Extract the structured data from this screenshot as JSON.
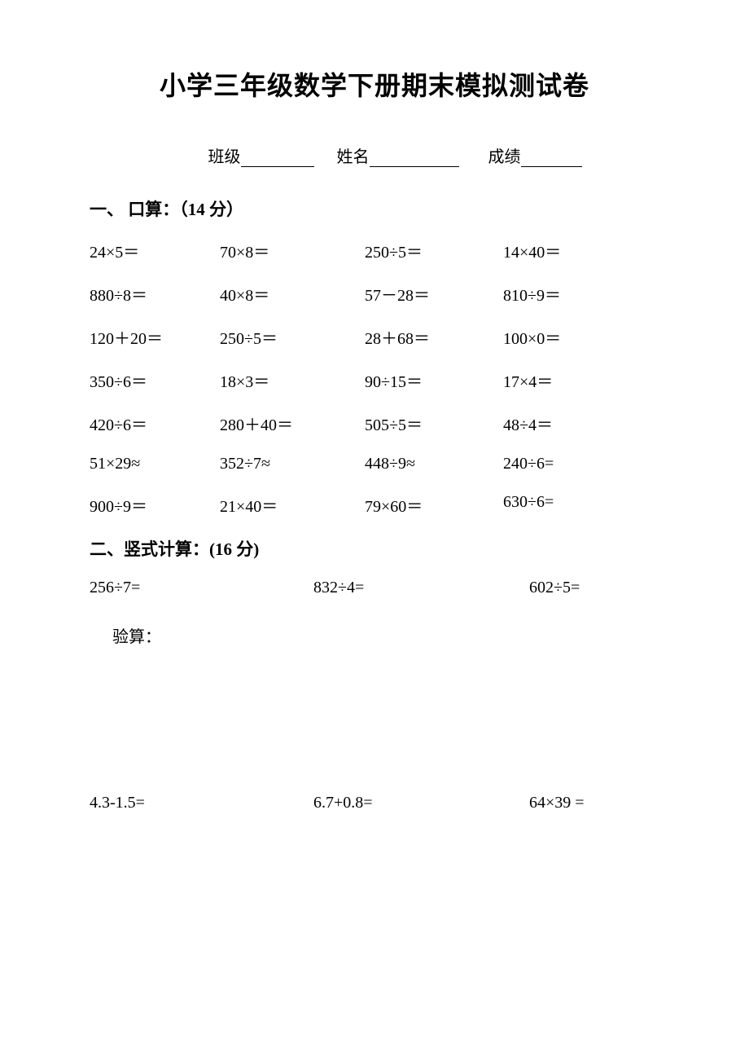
{
  "title": "小学三年级数学下册期末模拟测试卷",
  "info": {
    "class_label": "班级",
    "name_label": "姓名",
    "score_label": "成绩",
    "underline_widths": {
      "class": 90,
      "name": 110,
      "score": 75
    },
    "gaps": {
      "after_class": 28,
      "after_name": 36
    }
  },
  "section1": {
    "heading": "一、 口算：（14 分）",
    "rows": [
      [
        "24×5＝",
        "70×8＝",
        "250÷5＝",
        "14×40＝"
      ],
      [
        "880÷8＝",
        "40×8＝",
        "57－28＝",
        "810÷9＝"
      ],
      [
        "120＋20＝",
        "250÷5＝",
        "28＋68＝",
        "100×0＝"
      ],
      [
        "350÷6＝",
        "18×3＝",
        "90÷15＝",
        "17×4＝"
      ],
      [
        "420÷6＝",
        "280＋40＝",
        "505÷5＝",
        "48÷4＝"
      ],
      [
        "51×29≈",
        "352÷7≈",
        "448÷9≈",
        " 240÷6="
      ],
      [
        "900÷9＝",
        "21×40＝",
        " 79×60＝",
        " 630÷6="
      ]
    ]
  },
  "section2": {
    "heading": "二、竖式计算：(16 分)",
    "row1": [
      "256÷7=",
      "832÷4=",
      "602÷5="
    ],
    "verify": "验算：",
    "row2": [
      "4.3-1.5=",
      "6.7+0.8=",
      "64×39 ="
    ]
  },
  "style": {
    "background_color": "#ffffff",
    "text_color": "#000000",
    "title_fontsize": 32,
    "body_fontsize": 20,
    "heading_fontsize": 21
  }
}
